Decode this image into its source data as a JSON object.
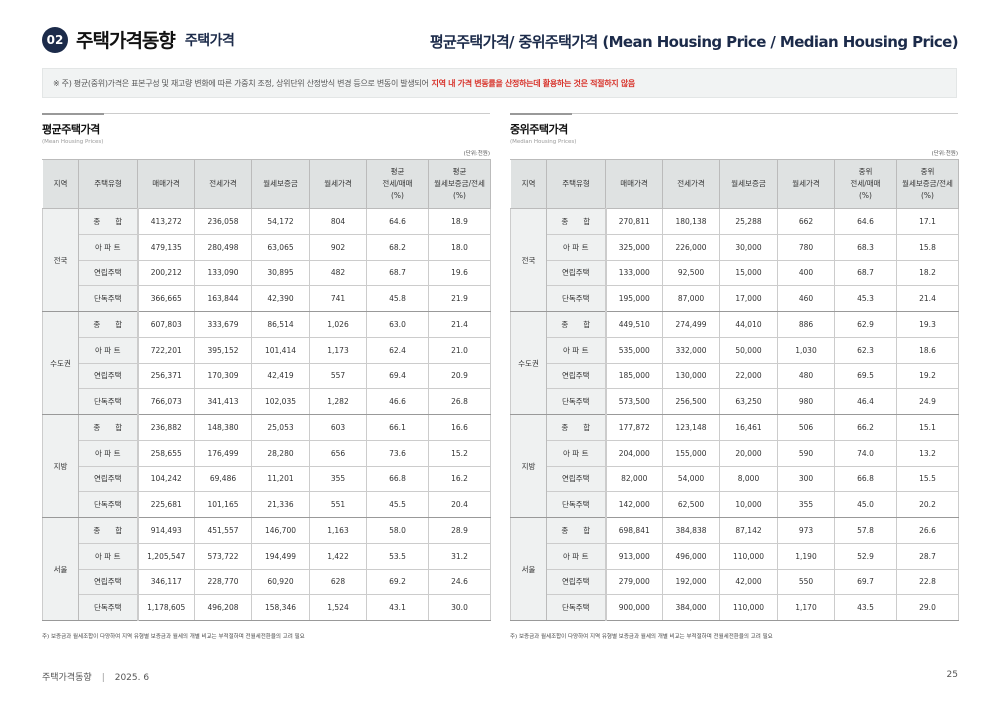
{
  "header": {
    "number": "02",
    "title": "주택가격동향",
    "subtitle": "주택가격",
    "right_title": "평균주택가격/ 중위주택가격 (Mean Housing Price / Median Housing Price)"
  },
  "notice": {
    "text": "※ 주) 평균(중위)가격은 표본구성 및 재고량 변화에 따른 가중치 조정, 상위단위 산정방식 변경 등으로 변동이 발생되어",
    "highlight": "지역 내 가격 변동률을 산정하는데 활용하는 것은 적절하지 않음",
    "highlight_color": "#d8342c"
  },
  "tables": [
    {
      "title": "평균주택가격",
      "subtitle": "(Mean Housing Prices)",
      "unit": "(단위:천원)",
      "headers": [
        "지역",
        "주택유형",
        "매매가격",
        "전세가격",
        "월세보증금",
        "월세가격",
        "평균\n전세/매매\n(%)",
        "평균\n월세보증금/전세\n(%)"
      ],
      "groups": [
        {
          "region": "전국",
          "rows": [
            [
              "종　　합",
              "413,272",
              "236,058",
              "54,172",
              "804",
              "64.6",
              "18.9"
            ],
            [
              "아 파 트",
              "479,135",
              "280,498",
              "63,065",
              "902",
              "68.2",
              "18.0"
            ],
            [
              "연립주택",
              "200,212",
              "133,090",
              "30,895",
              "482",
              "68.7",
              "19.6"
            ],
            [
              "단독주택",
              "366,665",
              "163,844",
              "42,390",
              "741",
              "45.8",
              "21.9"
            ]
          ]
        },
        {
          "region": "수도권",
          "rows": [
            [
              "종　　합",
              "607,803",
              "333,679",
              "86,514",
              "1,026",
              "63.0",
              "21.4"
            ],
            [
              "아 파 트",
              "722,201",
              "395,152",
              "101,414",
              "1,173",
              "62.4",
              "21.0"
            ],
            [
              "연립주택",
              "256,371",
              "170,309",
              "42,419",
              "557",
              "69.4",
              "20.9"
            ],
            [
              "단독주택",
              "766,073",
              "341,413",
              "102,035",
              "1,282",
              "46.6",
              "26.8"
            ]
          ]
        },
        {
          "region": "지방",
          "rows": [
            [
              "종　　합",
              "236,882",
              "148,380",
              "25,053",
              "603",
              "66.1",
              "16.6"
            ],
            [
              "아 파 트",
              "258,655",
              "176,499",
              "28,280",
              "656",
              "73.6",
              "15.2"
            ],
            [
              "연립주택",
              "104,242",
              "69,486",
              "11,201",
              "355",
              "66.8",
              "16.2"
            ],
            [
              "단독주택",
              "225,681",
              "101,165",
              "21,336",
              "551",
              "45.5",
              "20.4"
            ]
          ]
        },
        {
          "region": "서울",
          "rows": [
            [
              "종　　합",
              "914,493",
              "451,557",
              "146,700",
              "1,163",
              "58.0",
              "28.9"
            ],
            [
              "아 파 트",
              "1,205,547",
              "573,722",
              "194,499",
              "1,422",
              "53.5",
              "31.2"
            ],
            [
              "연립주택",
              "346,117",
              "228,770",
              "60,920",
              "628",
              "69.2",
              "24.6"
            ],
            [
              "단독주택",
              "1,178,605",
              "496,208",
              "158,346",
              "1,524",
              "43.1",
              "30.0"
            ]
          ]
        }
      ],
      "footnote": "주) 보증금과 월세조합이 다양하여 지역 유형별 보증금과 월세의 개별 비교는 부적절하며 전월세전환율의 고려 필요"
    },
    {
      "title": "중위주택가격",
      "subtitle": "(Median Housing Prices)",
      "unit": "(단위:천원)",
      "headers": [
        "지역",
        "주택유형",
        "매매가격",
        "전세가격",
        "월세보증금",
        "월세가격",
        "중위\n전세/매매\n(%)",
        "중위\n월세보증금/전세\n(%)"
      ],
      "groups": [
        {
          "region": "전국",
          "rows": [
            [
              "종　　합",
              "270,811",
              "180,138",
              "25,288",
              "662",
              "64.6",
              "17.1"
            ],
            [
              "아 파 트",
              "325,000",
              "226,000",
              "30,000",
              "780",
              "68.3",
              "15.8"
            ],
            [
              "연립주택",
              "133,000",
              "92,500",
              "15,000",
              "400",
              "68.7",
              "18.2"
            ],
            [
              "단독주택",
              "195,000",
              "87,000",
              "17,000",
              "460",
              "45.3",
              "21.4"
            ]
          ]
        },
        {
          "region": "수도권",
          "rows": [
            [
              "종　　합",
              "449,510",
              "274,499",
              "44,010",
              "886",
              "62.9",
              "19.3"
            ],
            [
              "아 파 트",
              "535,000",
              "332,000",
              "50,000",
              "1,030",
              "62.3",
              "18.6"
            ],
            [
              "연립주택",
              "185,000",
              "130,000",
              "22,000",
              "480",
              "69.5",
              "19.2"
            ],
            [
              "단독주택",
              "573,500",
              "256,500",
              "63,250",
              "980",
              "46.4",
              "24.9"
            ]
          ]
        },
        {
          "region": "지방",
          "rows": [
            [
              "종　　합",
              "177,872",
              "123,148",
              "16,461",
              "506",
              "66.2",
              "15.1"
            ],
            [
              "아 파 트",
              "204,000",
              "155,000",
              "20,000",
              "590",
              "74.0",
              "13.2"
            ],
            [
              "연립주택",
              "82,000",
              "54,000",
              "8,000",
              "300",
              "66.8",
              "15.5"
            ],
            [
              "단독주택",
              "142,000",
              "62,500",
              "10,000",
              "355",
              "45.0",
              "20.2"
            ]
          ]
        },
        {
          "region": "서울",
          "rows": [
            [
              "종　　합",
              "698,841",
              "384,838",
              "87,142",
              "973",
              "57.8",
              "26.6"
            ],
            [
              "아 파 트",
              "913,000",
              "496,000",
              "110,000",
              "1,190",
              "52.9",
              "28.7"
            ],
            [
              "연립주택",
              "279,000",
              "192,000",
              "42,000",
              "550",
              "69.7",
              "22.8"
            ],
            [
              "단독주택",
              "900,000",
              "384,000",
              "110,000",
              "1,170",
              "43.5",
              "29.0"
            ]
          ]
        }
      ],
      "footnote": "주) 보증금과 월세조합이 다양하여 지역 유형별 보증금과 월세의 개별 비교는 부적절하며 전월세전환율의 고려 필요"
    }
  ],
  "footer": {
    "left": "주택가격동향",
    "sep": "|",
    "date": "2025. 6",
    "page": "25"
  }
}
